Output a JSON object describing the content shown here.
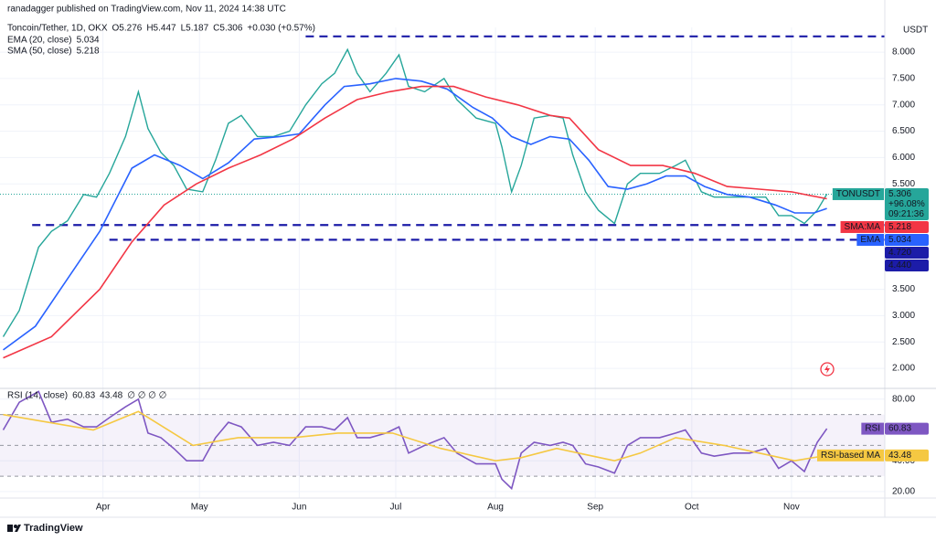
{
  "header": {
    "publisher": "ranadagger published on TradingView.com, Nov 11, 2024 14:38 UTC",
    "footer": "TradingView"
  },
  "chart_data": [
    {
      "type": "line",
      "title": "Toncoin/Tether, 1D, OKX",
      "quote": [
        "O5.276",
        "H5.447",
        "L5.187",
        "C5.306",
        "+0.030 (+0.57%)"
      ],
      "currency": "USDT",
      "x": [
        0,
        5,
        11,
        15,
        20,
        25,
        29,
        33,
        38,
        42,
        45,
        49,
        53,
        57,
        62,
        66,
        70,
        74,
        79,
        84,
        89,
        94,
        99,
        103,
        107,
        110,
        114,
        119,
        123,
        126,
        131,
        137,
        141,
        147,
        153,
        155,
        158,
        161,
        165,
        170,
        174,
        177,
        181,
        185,
        190,
        194,
        198,
        204,
        209,
        212,
        217,
        221,
        227,
        232,
        237,
        241,
        245,
        249,
        253,
        256
      ],
      "series": [
        {
          "name": "TONUSDT",
          "color": "#26a69a",
          "change_label": "+96.08%",
          "countdown": "09:21:36",
          "values": [
            2.6,
            3.1,
            4.3,
            4.6,
            4.8,
            5.3,
            5.25,
            5.7,
            6.4,
            7.25,
            6.55,
            6.1,
            5.85,
            5.4,
            5.35,
            5.95,
            6.65,
            6.8,
            6.4,
            6.4,
            6.5,
            7.0,
            7.4,
            7.6,
            8.05,
            7.6,
            7.25,
            7.6,
            7.95,
            7.35,
            7.25,
            7.5,
            7.1,
            6.75,
            6.65,
            6.2,
            5.35,
            5.85,
            6.75,
            6.8,
            6.75,
            6.05,
            5.35,
            5.0,
            4.75,
            5.5,
            5.7,
            5.7,
            5.85,
            5.95,
            5.35,
            5.25,
            5.25,
            5.25,
            5.25,
            4.9,
            4.9,
            4.75,
            5.0,
            5.306
          ]
        },
        {
          "name": "EMA (20, close)",
          "tag": "EMA",
          "color": "#2962ff",
          "x": [
            0,
            10,
            20,
            30,
            40,
            47,
            55,
            62,
            70,
            78,
            86,
            92,
            100,
            106,
            114,
            122,
            130,
            138,
            146,
            152,
            158,
            164,
            170,
            176,
            182,
            188,
            194,
            200,
            206,
            212,
            218,
            225,
            232,
            240,
            246,
            252,
            256
          ],
          "values": [
            2.35,
            2.8,
            3.7,
            4.6,
            5.8,
            6.05,
            5.85,
            5.6,
            5.9,
            6.35,
            6.4,
            6.45,
            7.0,
            7.35,
            7.4,
            7.5,
            7.45,
            7.3,
            6.95,
            6.75,
            6.4,
            6.25,
            6.4,
            6.35,
            5.95,
            5.45,
            5.4,
            5.5,
            5.65,
            5.65,
            5.45,
            5.3,
            5.25,
            5.1,
            4.95,
            4.95,
            5.034
          ]
        },
        {
          "name": "SMA (50, close)",
          "tag": "SMA:MA",
          "color": "#f23645",
          "x": [
            0,
            15,
            30,
            40,
            50,
            60,
            70,
            80,
            90,
            100,
            110,
            120,
            130,
            140,
            150,
            160,
            170,
            176,
            185,
            195,
            205,
            215,
            225,
            235,
            245,
            256
          ],
          "values": [
            2.2,
            2.6,
            3.5,
            4.4,
            5.1,
            5.5,
            5.8,
            6.05,
            6.35,
            6.75,
            7.1,
            7.25,
            7.35,
            7.35,
            7.15,
            7.0,
            6.8,
            6.75,
            6.15,
            5.85,
            5.85,
            5.7,
            5.45,
            5.4,
            5.35,
            5.218
          ]
        }
      ],
      "support_resistance": [
        {
          "value": 8.3,
          "from": 94
        },
        {
          "value": 4.72,
          "label": "4.720",
          "from": 9
        },
        {
          "value": 4.44,
          "label": "4.440",
          "from": 33
        }
      ],
      "level_color": "#1c1ca8",
      "xlim": [
        -1,
        274
      ],
      "xticks": [
        {
          "value": 31,
          "label": "Apr"
        },
        {
          "value": 61,
          "label": "May"
        },
        {
          "value": 92,
          "label": "Jun"
        },
        {
          "value": 122,
          "label": "Jul"
        },
        {
          "value": 153,
          "label": "Aug"
        },
        {
          "value": 184,
          "label": "Sep"
        },
        {
          "value": 214,
          "label": "Oct"
        },
        {
          "value": 245,
          "label": "Nov"
        }
      ],
      "ylim": [
        1.62,
        8.47
      ],
      "yticks": [
        {
          "value": 2,
          "label": "2.000"
        },
        {
          "value": 2.5,
          "label": "2.500"
        },
        {
          "value": 3,
          "label": "3.000"
        },
        {
          "value": 3.5,
          "label": "3.500"
        },
        {
          "value": 5.5,
          "label": "5.500"
        },
        {
          "value": 6,
          "label": "6.000"
        },
        {
          "value": 6.5,
          "label": "6.500"
        },
        {
          "value": 7,
          "label": "7.000"
        },
        {
          "value": 7.5,
          "label": "7.500"
        },
        {
          "value": 8,
          "label": "8.000"
        }
      ],
      "grid": true
    },
    {
      "type": "line",
      "title": "RSI (14, close)",
      "na": "∅ ∅ ∅ ∅",
      "x": [
        0,
        5,
        11,
        15,
        20,
        25,
        29,
        33,
        38,
        42,
        45,
        49,
        53,
        57,
        62,
        66,
        70,
        74,
        79,
        84,
        89,
        94,
        99,
        103,
        107,
        110,
        114,
        119,
        123,
        126,
        131,
        137,
        141,
        147,
        153,
        155,
        158,
        161,
        165,
        170,
        174,
        177,
        181,
        185,
        190,
        194,
        198,
        204,
        209,
        212,
        217,
        221,
        227,
        232,
        237,
        241,
        245,
        249,
        253,
        256
      ],
      "series": [
        {
          "name": "RSI",
          "color": "#7e57c2",
          "values": [
            60,
            78,
            85,
            65,
            67,
            62,
            62,
            68,
            75,
            80,
            58,
            55,
            48,
            40,
            40,
            55,
            65,
            62,
            50,
            52,
            50,
            62,
            62,
            60,
            68,
            55,
            55,
            58,
            62,
            45,
            50,
            55,
            45,
            38,
            38,
            28,
            22,
            45,
            52,
            50,
            52,
            50,
            38,
            36,
            32,
            50,
            55,
            55,
            58,
            60,
            45,
            43,
            45,
            45,
            48,
            35,
            40,
            33,
            52,
            60.83
          ]
        },
        {
          "name": "RSI-based MA",
          "color": "#f5c842",
          "x": [
            0,
            28,
            42,
            59,
            73,
            90,
            104,
            121,
            136,
            153,
            161,
            172,
            190,
            198,
            209,
            224,
            235,
            246,
            256
          ],
          "values": [
            70,
            60,
            72,
            50,
            55,
            55,
            58,
            58,
            48,
            40,
            42,
            48,
            40,
            45,
            55,
            50,
            45,
            40,
            43.48
          ]
        }
      ],
      "levels": [
        30,
        50,
        70
      ],
      "band_color": "#7e57c2",
      "xlim": [
        -1,
        274
      ],
      "xticks": [
        {
          "value": 31,
          "label": "Apr"
        },
        {
          "value": 61,
          "label": "May"
        },
        {
          "value": 92,
          "label": "Jun"
        },
        {
          "value": 122,
          "label": "Jul"
        },
        {
          "value": 153,
          "label": "Aug"
        },
        {
          "value": 184,
          "label": "Sep"
        },
        {
          "value": 214,
          "label": "Oct"
        },
        {
          "value": 245,
          "label": "Nov"
        }
      ],
      "ylim": [
        15.8,
        87
      ],
      "yticks": [
        {
          "value": 20,
          "label": "20.00"
        },
        {
          "value": 40,
          "label": "40.00"
        },
        {
          "value": 80,
          "label": "80.00"
        }
      ],
      "grid": true
    }
  ]
}
